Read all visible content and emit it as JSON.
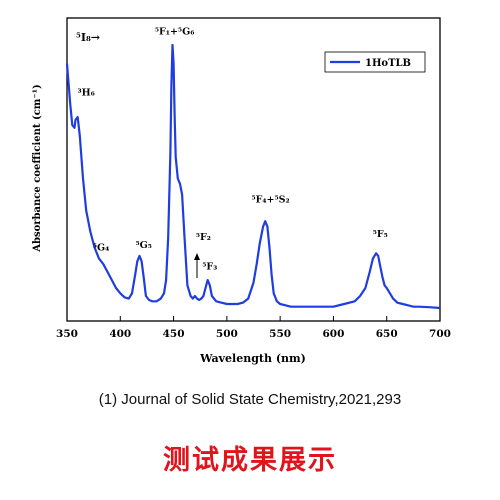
{
  "chart_data": {
    "type": "line",
    "xlabel": "Wavelength (nm)",
    "ylabel": "Absorbance coefficient (cm⁻¹)",
    "xlim": [
      350,
      700
    ],
    "ylim": [
      0,
      1
    ],
    "xticks": [
      "350",
      "400",
      "450",
      "500",
      "550",
      "600",
      "650",
      "700"
    ],
    "grid": false,
    "legend_position": "top-right",
    "transition_label": "⁵I₈→",
    "series": [
      {
        "name": "1HoTLB",
        "color": "#1f3de0",
        "x": [
          350,
          353,
          355,
          357,
          358,
          360,
          362,
          365,
          368,
          372,
          376,
          380,
          384,
          388,
          392,
          396,
          400,
          404,
          408,
          411,
          414,
          416,
          418,
          420,
          422,
          424,
          427,
          430,
          434,
          438,
          441,
          443,
          445,
          447,
          448,
          449,
          450,
          451,
          452,
          454,
          456,
          458,
          460,
          463,
          466,
          468,
          470,
          472,
          474,
          476,
          478,
          480,
          482,
          484,
          486,
          490,
          495,
          500,
          505,
          510,
          515,
          520,
          525,
          528,
          531,
          534,
          536,
          538,
          540,
          542,
          544,
          547,
          550,
          555,
          560,
          570,
          580,
          590,
          600,
          610,
          620,
          625,
          630,
          634,
          637,
          640,
          642,
          644,
          646,
          648,
          650,
          653,
          656,
          660,
          665,
          670,
          675,
          680,
          690,
          700
        ],
        "y": [
          0.93,
          0.78,
          0.7,
          0.69,
          0.72,
          0.73,
          0.66,
          0.5,
          0.38,
          0.3,
          0.24,
          0.2,
          0.18,
          0.15,
          0.12,
          0.09,
          0.07,
          0.055,
          0.05,
          0.07,
          0.14,
          0.19,
          0.21,
          0.19,
          0.13,
          0.06,
          0.045,
          0.04,
          0.04,
          0.05,
          0.07,
          0.12,
          0.28,
          0.6,
          0.85,
          1.0,
          0.93,
          0.74,
          0.58,
          0.5,
          0.48,
          0.44,
          0.3,
          0.1,
          0.06,
          0.05,
          0.06,
          0.05,
          0.045,
          0.05,
          0.06,
          0.09,
          0.12,
          0.1,
          0.06,
          0.04,
          0.035,
          0.03,
          0.03,
          0.03,
          0.035,
          0.05,
          0.11,
          0.18,
          0.26,
          0.32,
          0.34,
          0.32,
          0.24,
          0.14,
          0.07,
          0.04,
          0.03,
          0.025,
          0.02,
          0.02,
          0.02,
          0.02,
          0.02,
          0.03,
          0.04,
          0.06,
          0.09,
          0.15,
          0.2,
          0.22,
          0.21,
          0.17,
          0.13,
          0.1,
          0.09,
          0.07,
          0.05,
          0.035,
          0.03,
          0.025,
          0.02,
          0.02,
          0.018,
          0.015
        ]
      }
    ],
    "annotations": [
      {
        "text": "⁵F₁+⁵G₆",
        "x": 451,
        "y": 1.04
      },
      {
        "text": "³H₆",
        "x": 368,
        "y": 0.81
      },
      {
        "text": "⁵G₄",
        "x": 382,
        "y": 0.23
      },
      {
        "text": "⁵G₅",
        "x": 422,
        "y": 0.24
      },
      {
        "text": "⁵F₂",
        "x": 478,
        "y": 0.27
      },
      {
        "text": "⁵F₃",
        "x": 484,
        "y": 0.16
      },
      {
        "text": "⁵F₄+⁵S₂",
        "x": 541,
        "y": 0.41
      },
      {
        "text": "⁵F₅",
        "x": 644,
        "y": 0.28
      }
    ]
  },
  "caption": "(1) Journal of Solid State Chemistry,2021,293",
  "banner": "测试成果展示",
  "colors": {
    "series": "#1f3de0",
    "banner": "#e0141c"
  }
}
